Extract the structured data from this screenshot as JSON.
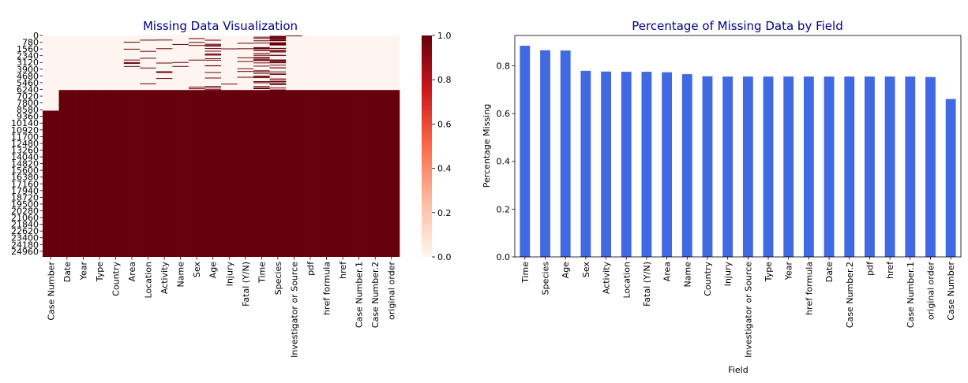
{
  "chart_data": [
    {
      "type": "heatmap",
      "title": "Missing Data Visualization",
      "title_color": "#00008b",
      "xlabel": "",
      "ylabel": "",
      "columns": [
        "Case Number",
        "Date",
        "Year",
        "Type",
        "Country",
        "Area",
        "Location",
        "Activity",
        "Name",
        "Sex",
        "Age",
        "Injury",
        "Fatal (Y/N)",
        "Time",
        "Species",
        "Investigator or Source",
        "pdf",
        "href formula",
        "href",
        "Case Number.1",
        "Case Number.2",
        "original order"
      ],
      "y_ticks": [
        "0",
        "780",
        "1560",
        "2340",
        "3120",
        "3900",
        "4680",
        "5460",
        "6240",
        "7020",
        "7800",
        "8580",
        "9360",
        "10140",
        "10920",
        "11700",
        "12480",
        "13260",
        "14040",
        "14820",
        "15600",
        "16380",
        "17160",
        "17940",
        "18720",
        "19500",
        "20280",
        "21060",
        "21840",
        "22620",
        "23400",
        "24180",
        "24960"
      ],
      "y_range": [
        0,
        25614
      ],
      "missing_from_row": [
        8700,
        6309,
        6309,
        6309,
        6309,
        6309,
        6309,
        6309,
        6309,
        6309,
        6309,
        6309,
        6309,
        6309,
        6309,
        6309,
        6309,
        6309,
        6309,
        6309,
        6309,
        6309
      ],
      "colorbar": {
        "min": 0.0,
        "max": 1.0,
        "ticks": [
          "0.0",
          "0.2",
          "0.4",
          "0.6",
          "0.8",
          "1.0"
        ],
        "colors": [
          "#fff5f0",
          "#fcbba1",
          "#fb6a4a",
          "#cb181d",
          "#67000d"
        ]
      }
    },
    {
      "type": "bar",
      "title": "Percentage of Missing Data by Field",
      "title_color": "#00008b",
      "xlabel": "Field",
      "ylabel": "Percentage Missing",
      "categories": [
        "Time",
        "Species",
        "Age",
        "Sex",
        "Activity",
        "Location",
        "Fatal (Y/N)",
        "Area",
        "Name",
        "Country",
        "Injury",
        "Investigator or Source",
        "Type",
        "Year",
        "href formula",
        "Date",
        "Case Number.2",
        "pdf",
        "href",
        "Case Number.1",
        "original order",
        "Case Number"
      ],
      "values": [
        0.884,
        0.865,
        0.864,
        0.779,
        0.776,
        0.775,
        0.775,
        0.773,
        0.765,
        0.756,
        0.755,
        0.755,
        0.755,
        0.755,
        0.755,
        0.755,
        0.755,
        0.755,
        0.755,
        0.755,
        0.753,
        0.661
      ],
      "yticks": [
        "0.0",
        "0.2",
        "0.4",
        "0.6",
        "0.8"
      ],
      "ylim": [
        0,
        0.927
      ],
      "color": "#4169e1"
    }
  ]
}
